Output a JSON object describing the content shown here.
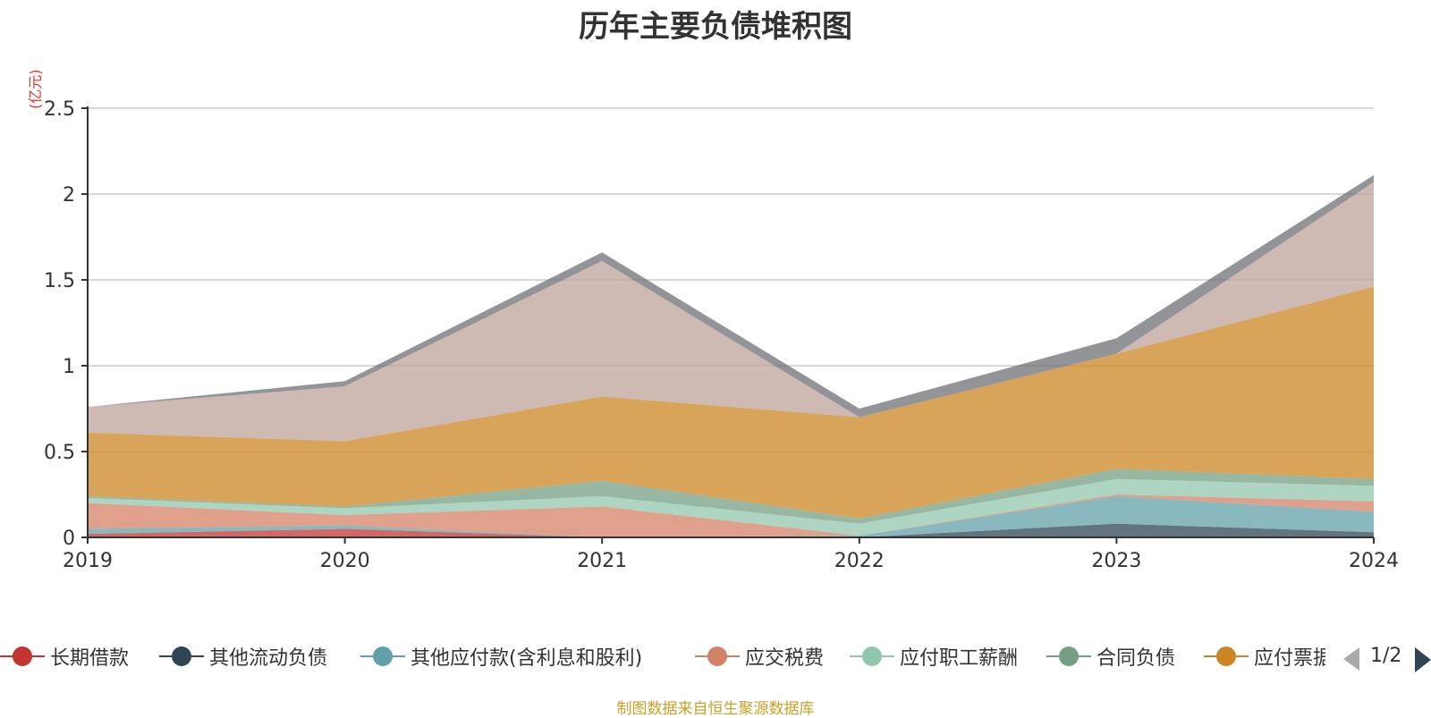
{
  "chart_data": {
    "type": "area",
    "stacked": true,
    "title": "历年主要负债堆积图",
    "ylabel": "(亿元)",
    "xlabel": "",
    "categories": [
      "2019",
      "2020",
      "2021",
      "2022",
      "2023",
      "2024"
    ],
    "ylim": [
      0,
      2.5
    ],
    "yticks": [
      "0",
      "0.5",
      "1",
      "1.5",
      "2",
      "2.5"
    ],
    "grid": true,
    "series": [
      {
        "name": "长期借款",
        "color": "#c23531",
        "values": [
          0.02,
          0.05,
          0.0,
          0.0,
          0.0,
          0.0
        ]
      },
      {
        "name": "其他流动负债",
        "color": "#2f4554",
        "values": [
          0.0,
          0.0,
          0.0,
          0.0,
          0.08,
          0.03
        ]
      },
      {
        "name": "其他应付款(含利息和股利)",
        "color": "#61a0a8",
        "values": [
          0.03,
          0.02,
          0.0,
          0.01,
          0.16,
          0.12
        ]
      },
      {
        "name": "应交税费",
        "color": "#d48265",
        "values": [
          0.15,
          0.06,
          0.18,
          0.0,
          0.01,
          0.06
        ]
      },
      {
        "name": "应付职工薪酬",
        "color": "#91c7ae",
        "values": [
          0.03,
          0.04,
          0.06,
          0.07,
          0.09,
          0.09
        ]
      },
      {
        "name": "合同负债",
        "color": "#749f83",
        "values": [
          0.01,
          0.01,
          0.09,
          0.03,
          0.06,
          0.04
        ]
      },
      {
        "name": "应付票据及应付账款",
        "color": "#ca8622",
        "values": [
          0.37,
          0.38,
          0.49,
          0.59,
          0.67,
          1.12
        ]
      },
      {
        "name": "",
        "color": "#bda29a",
        "values": [
          0.15,
          0.32,
          0.79,
          0.0,
          0.0,
          0.61
        ]
      },
      {
        "name": "",
        "color": "#6e7074",
        "values": [
          0.0,
          0.03,
          0.05,
          0.05,
          0.09,
          0.04
        ]
      }
    ]
  },
  "legend": {
    "items": [
      {
        "label": "长期借款",
        "color": "#c23531"
      },
      {
        "label": "其他流动负债",
        "color": "#2f4554"
      },
      {
        "label": "其他应付款(含利息和股利)",
        "color": "#61a0a8"
      },
      {
        "label": "应交税费",
        "color": "#d48265"
      },
      {
        "label": "应付职工薪酬",
        "color": "#91c7ae"
      },
      {
        "label": "合同负债",
        "color": "#749f83"
      },
      {
        "label": "应付票据及应付账款",
        "color": "#ca8622"
      }
    ],
    "page_text": "1/2"
  },
  "source_note": "制图数据来自恒生聚源数据库"
}
